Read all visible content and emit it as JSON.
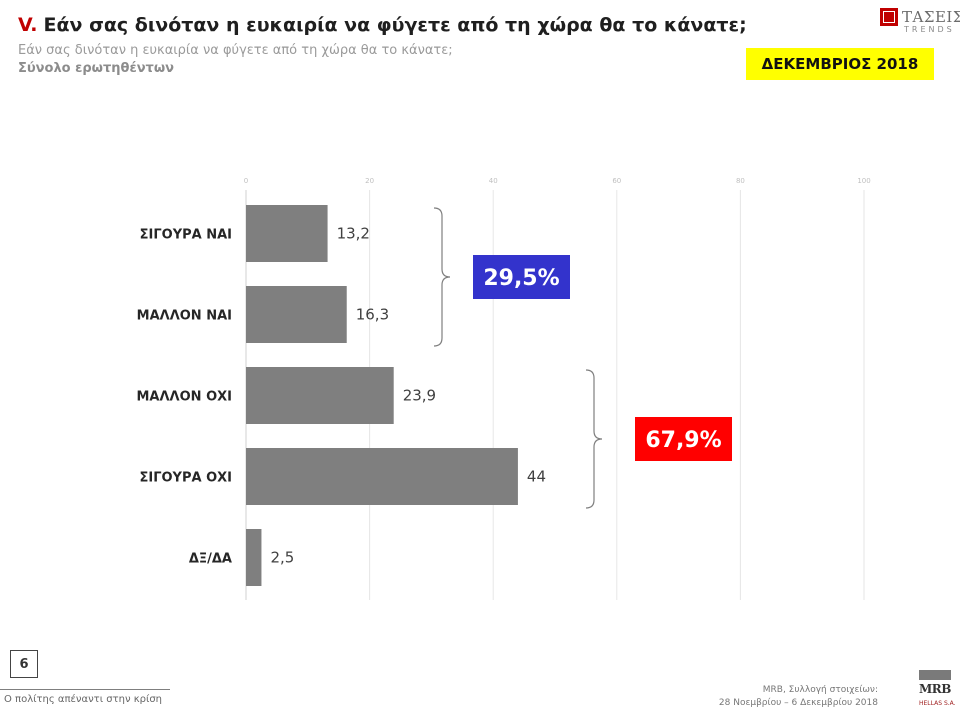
{
  "header": {
    "prefix": "V.",
    "title": "Εάν σας δινόταν η ευκαιρία να φύγετε από τη χώρα θα το κάνατε;",
    "subtitle": "Εάν σας δινόταν η ευκαιρία να φύγετε από τη χώρα θα το κάνατε;",
    "base": "Σύνολο ερωτηθέντων"
  },
  "logo": {
    "name": "ΤΑΣΕΙΣ",
    "sub": "TRENDS"
  },
  "date_badge": "ΔΕΚΕΜΒΡΙΟΣ 2018",
  "colors": {
    "bar": "#7f7f7f",
    "yes_box": "#3333cc",
    "no_box": "#ff0000",
    "badge": "#ffff00",
    "title_prefix": "#c00000"
  },
  "chart_data": {
    "type": "bar",
    "orientation": "horizontal",
    "categories": [
      "ΣΙΓΟΥΡΑ ΝΑΙ",
      "ΜΑΛΛΟΝ ΝΑΙ",
      "ΜΑΛΛΟΝ ΟΧΙ",
      "ΣΙΓΟΥΡΑ ΟΧΙ",
      "ΔΞ/ΔΑ"
    ],
    "values": [
      13.2,
      16.3,
      23.9,
      44,
      2.5
    ],
    "value_labels": [
      "13,2",
      "16,3",
      "23,9",
      "44",
      "2,5"
    ],
    "xlim": [
      0,
      100
    ],
    "ticks": [
      "0",
      "20",
      "40",
      "60",
      "80",
      "100"
    ],
    "grid": true,
    "groups": [
      {
        "label": "29,5%",
        "members": [
          "ΣΙΓΟΥΡΑ ΝΑΙ",
          "ΜΑΛΛΟΝ ΝΑΙ"
        ]
      },
      {
        "label": "67,9%",
        "members": [
          "ΜΑΛΛΟΝ ΟΧΙ",
          "ΣΙΓΟΥΡΑ ΟΧΙ"
        ]
      }
    ]
  },
  "footer": {
    "page_number": "6",
    "left": "Ο πολίτης απέναντι στην κρίση",
    "right_line1": "MRB, Συλλογή στοιχείων:",
    "right_line2": "28 Νοεμβρίου – 6 Δεκεμβρίου 2018",
    "mrb_logo": "MRB",
    "mrb_sub": "HELLAS S.A."
  }
}
